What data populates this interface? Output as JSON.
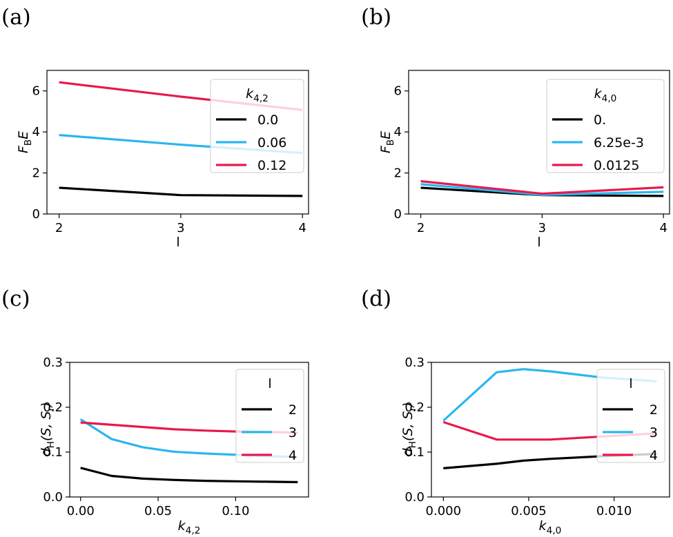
{
  "colors": {
    "black": "#000000",
    "blue": "#29b6f0",
    "red": "#e8194b"
  },
  "chart_data": [
    {
      "panel": "(a)",
      "type": "line",
      "xlabel": "l",
      "ylabel": "F_BE",
      "xlim": [
        1.9,
        4.05
      ],
      "ylim": [
        0,
        7
      ],
      "xticks": [
        2,
        3,
        4
      ],
      "xtick_labels": [
        "2",
        "3",
        "4"
      ],
      "yticks": [
        0,
        2,
        4,
        6
      ],
      "ytick_labels": [
        "0",
        "2",
        "4",
        "6"
      ],
      "grid": false,
      "legend": {
        "title": "k_{4,2}",
        "placement": "top-right"
      },
      "x": [
        2,
        3,
        4
      ],
      "series": [
        {
          "name": "0.0",
          "color": "#000000",
          "values": [
            1.28,
            0.92,
            0.88
          ]
        },
        {
          "name": "0.06",
          "color": "#29b6f0",
          "values": [
            3.85,
            3.38,
            2.97
          ]
        },
        {
          "name": "0.12",
          "color": "#e8194b",
          "values": [
            6.42,
            5.72,
            5.07
          ]
        }
      ]
    },
    {
      "panel": "(b)",
      "type": "line",
      "xlabel": "l",
      "ylabel": "F_BE",
      "xlim": [
        1.9,
        4.05
      ],
      "ylim": [
        0,
        7
      ],
      "xticks": [
        2,
        3,
        4
      ],
      "xtick_labels": [
        "2",
        "3",
        "4"
      ],
      "yticks": [
        0,
        2,
        4,
        6
      ],
      "ytick_labels": [
        "0",
        "2",
        "4",
        "6"
      ],
      "grid": false,
      "legend": {
        "title": "k_{4,0}",
        "placement": "top-right"
      },
      "x": [
        2,
        3,
        4
      ],
      "series": [
        {
          "name": "0.",
          "color": "#000000",
          "values": [
            1.28,
            0.92,
            0.88
          ]
        },
        {
          "name": "6.25e-3",
          "color": "#29b6f0",
          "values": [
            1.45,
            0.93,
            1.08
          ]
        },
        {
          "name": "0.0125",
          "color": "#e8194b",
          "values": [
            1.6,
            0.99,
            1.3
          ]
        }
      ]
    },
    {
      "panel": "(c)",
      "type": "line",
      "xlabel": "k_{4,2}",
      "ylabel": "d_H(S, S_r)",
      "xlim": [
        -0.007,
        0.147
      ],
      "ylim": [
        0,
        0.3
      ],
      "xticks": [
        0,
        0.05,
        0.1
      ],
      "xtick_labels": [
        "0.00",
        "0.05",
        "0.10"
      ],
      "yticks": [
        0,
        0.1,
        0.2,
        0.3
      ],
      "ytick_labels": [
        "0.0",
        "0.1",
        "0.2",
        "0.3"
      ],
      "grid": false,
      "legend": {
        "title": "l",
        "placement": "top-right"
      },
      "x": [
        0,
        0.02,
        0.04,
        0.06,
        0.08,
        0.1,
        0.12,
        0.14
      ],
      "series": [
        {
          "name": "2",
          "color": "#000000",
          "values": [
            0.065,
            0.047,
            0.041,
            0.038,
            0.036,
            0.035,
            0.034,
            0.033
          ]
        },
        {
          "name": "3",
          "color": "#29b6f0",
          "values": [
            0.173,
            0.129,
            0.111,
            0.101,
            0.097,
            0.094,
            0.091,
            0.089
          ]
        },
        {
          "name": "4",
          "color": "#e8194b",
          "values": [
            0.166,
            0.161,
            0.156,
            0.151,
            0.148,
            0.146,
            0.145,
            0.143
          ]
        }
      ]
    },
    {
      "panel": "(d)",
      "type": "line",
      "xlabel": "k_{4,0}",
      "ylabel": "d_H(S, S_r)",
      "xlim": [
        -0.0007,
        0.01325
      ],
      "ylim": [
        0,
        0.3
      ],
      "xticks": [
        0,
        0.005,
        0.01
      ],
      "xtick_labels": [
        "0.000",
        "0.005",
        "0.010"
      ],
      "yticks": [
        0,
        0.1,
        0.2,
        0.3
      ],
      "ytick_labels": [
        "0.0",
        "0.1",
        "0.2",
        "0.3"
      ],
      "grid": false,
      "legend": {
        "title": "l",
        "placement": "right"
      },
      "x": [
        0,
        0.003125,
        0.0046875,
        0.00625,
        0.009375,
        0.0125
      ],
      "series": [
        {
          "name": "2",
          "color": "#000000",
          "values": [
            0.064,
            0.074,
            0.081,
            0.085,
            0.091,
            0.096
          ]
        },
        {
          "name": "3",
          "color": "#29b6f0",
          "values": [
            0.17,
            0.278,
            0.285,
            0.28,
            0.266,
            0.258
          ]
        },
        {
          "name": "4",
          "color": "#e8194b",
          "values": [
            0.167,
            0.128,
            0.128,
            0.128,
            0.135,
            0.142
          ]
        }
      ]
    }
  ]
}
